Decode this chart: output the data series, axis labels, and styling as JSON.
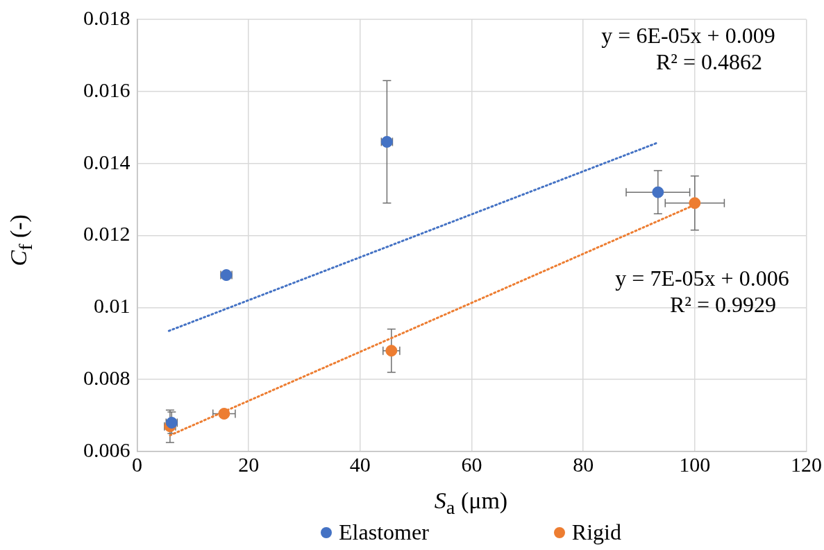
{
  "chart_data": {
    "type": "scatter",
    "xlabel": "S$_{a}$ (μm)",
    "ylabel": "C$_{f}$ (-)",
    "xlim": [
      0,
      120
    ],
    "xticks": [
      0,
      20,
      40,
      60,
      80,
      100,
      120
    ],
    "ylim": [
      0.006,
      0.018
    ],
    "yticks": [
      0.006,
      0.008,
      {
        "value": 0.01,
        "label": "0.01"
      },
      0.012,
      0.014,
      0.016,
      0.018
    ],
    "grid": true,
    "legend": "bottom",
    "marker": "circle",
    "series": [
      {
        "name": "Elastomer",
        "color": "#4472c4",
        "x": [
          6.2,
          16.0,
          44.8,
          93.4
        ],
        "values": [
          0.0068,
          0.0109,
          0.0146,
          0.0132
        ],
        "errors": [
          0.0003,
          null,
          0.0017,
          0.0006
        ],
        "xerrors": [
          1,
          1,
          1,
          5.7
        ]
      },
      {
        "name": "Rigid",
        "color": "#ed7d31",
        "x": [
          5.9,
          15.6,
          45.6,
          100
        ],
        "values": [
          0.0067,
          0.00705,
          0.0088,
          0.0129
        ],
        "errors": [
          0.00045,
          null,
          0.0006,
          0.00075
        ],
        "xerrors": [
          1,
          2,
          1.5,
          5.3
        ]
      },
      {
        "type": "line",
        "color": "#4472c4",
        "line_style": "dotted",
        "marker": "none",
        "x": [
          5.7,
          93.4
        ],
        "values": [
          0.00935,
          0.01458
        ]
      },
      {
        "type": "line",
        "color": "#ed7d31",
        "line_style": "dotted",
        "marker": "none",
        "x": [
          5.9,
          100
        ],
        "values": [
          0.00645,
          0.01285
        ]
      }
    ],
    "annotations": [
      "y = 6E-05x + 0.009\nR² = 0.4862",
      "y = 7E-05x + 0.006\nR² = 0.9929"
    ]
  }
}
